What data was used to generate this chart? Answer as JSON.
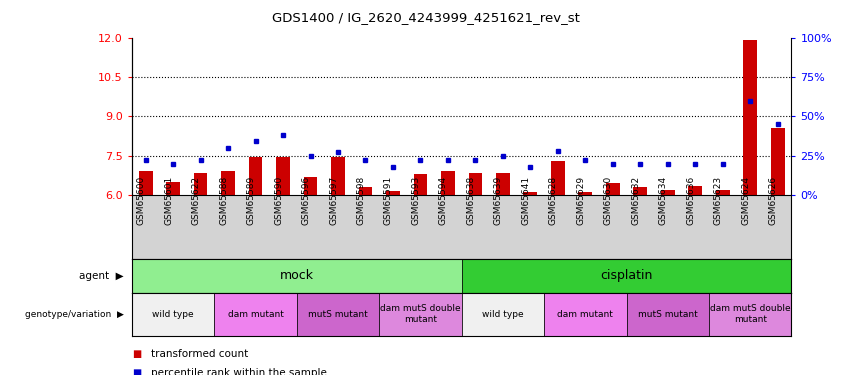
{
  "title": "GDS1400 / IG_2620_4243999_4251621_rev_st",
  "samples": [
    "GSM65600",
    "GSM65601",
    "GSM65622",
    "GSM65588",
    "GSM65589",
    "GSM65590",
    "GSM65596",
    "GSM65597",
    "GSM65598",
    "GSM65591",
    "GSM65593",
    "GSM65594",
    "GSM65638",
    "GSM65639",
    "GSM65641",
    "GSM65628",
    "GSM65629",
    "GSM65630",
    "GSM65632",
    "GSM65634",
    "GSM65636",
    "GSM65623",
    "GSM65624",
    "GSM65626"
  ],
  "transformed_count": [
    6.9,
    6.5,
    6.85,
    6.9,
    7.45,
    7.45,
    6.7,
    7.45,
    6.3,
    6.15,
    6.8,
    6.9,
    6.85,
    6.85,
    6.1,
    7.3,
    6.1,
    6.45,
    6.3,
    6.2,
    6.35,
    6.2,
    11.9,
    8.55
  ],
  "percentile_rank": [
    22,
    20,
    22,
    30,
    34,
    38,
    25,
    27,
    22,
    18,
    22,
    22,
    22,
    25,
    18,
    28,
    22,
    20,
    20,
    20,
    20,
    20,
    60,
    45
  ],
  "ylim_left": [
    6,
    12
  ],
  "ylim_right": [
    0,
    100
  ],
  "yticks_left": [
    6,
    7.5,
    9,
    10.5,
    12
  ],
  "yticks_right": [
    0,
    25,
    50,
    75,
    100
  ],
  "bar_color": "#cc0000",
  "dot_color": "#0000cc",
  "xticklabel_bg": "#d3d3d3",
  "agent_groups": [
    {
      "label": "mock",
      "start": 0,
      "end": 12,
      "color": "#90ee90"
    },
    {
      "label": "cisplatin",
      "start": 12,
      "end": 24,
      "color": "#33cc33"
    }
  ],
  "genotype_groups": [
    {
      "label": "wild type",
      "start": 0,
      "end": 3,
      "color": "#f0f0f0"
    },
    {
      "label": "dam mutant",
      "start": 3,
      "end": 6,
      "color": "#ee82ee"
    },
    {
      "label": "mutS mutant",
      "start": 6,
      "end": 9,
      "color": "#cc66cc"
    },
    {
      "label": "dam mutS double\nmutant",
      "start": 9,
      "end": 12,
      "color": "#dd88dd"
    },
    {
      "label": "wild type",
      "start": 12,
      "end": 15,
      "color": "#f0f0f0"
    },
    {
      "label": "dam mutant",
      "start": 15,
      "end": 18,
      "color": "#ee82ee"
    },
    {
      "label": "mutS mutant",
      "start": 18,
      "end": 21,
      "color": "#cc66cc"
    },
    {
      "label": "dam mutS double\nmutant",
      "start": 21,
      "end": 24,
      "color": "#dd88dd"
    }
  ],
  "legend_items": [
    {
      "label": "transformed count",
      "color": "#cc0000"
    },
    {
      "label": "percentile rank within the sample",
      "color": "#0000cc"
    }
  ],
  "agent_label": "agent",
  "geno_label": "genotype/variation"
}
